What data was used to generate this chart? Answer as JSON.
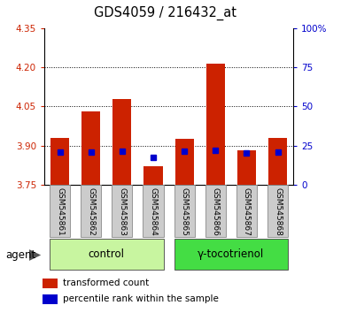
{
  "title": "GDS4059 / 216432_at",
  "samples": [
    "GSM545861",
    "GSM545862",
    "GSM545863",
    "GSM545864",
    "GSM545865",
    "GSM545866",
    "GSM545867",
    "GSM545868"
  ],
  "red_values": [
    3.93,
    4.03,
    4.08,
    3.82,
    3.925,
    4.215,
    3.882,
    3.93
  ],
  "blue_values": [
    3.875,
    3.875,
    3.878,
    3.855,
    3.878,
    3.882,
    3.872,
    3.874
  ],
  "baseline": 3.75,
  "ylim": [
    3.75,
    4.35
  ],
  "ylim_right": [
    0,
    100
  ],
  "yticks_left": [
    3.75,
    3.9,
    4.05,
    4.2,
    4.35
  ],
  "yticks_right": [
    0,
    25,
    50,
    75,
    100
  ],
  "ytick_labels_right": [
    "0",
    "25",
    "50",
    "75",
    "100%"
  ],
  "groups": [
    {
      "label": "control",
      "indices": [
        0,
        1,
        2,
        3
      ],
      "color": "#c8f5a0"
    },
    {
      "label": "γ-tocotrienol",
      "indices": [
        4,
        5,
        6,
        7
      ],
      "color": "#44dd44"
    }
  ],
  "agent_label": "agent",
  "bar_color": "#cc2200",
  "dot_color": "#0000cc",
  "bar_width": 0.6,
  "grid_color": "#000000",
  "plot_bg_color": "#ffffff",
  "sample_bg_color": "#cccccc",
  "legend_items": [
    {
      "color": "#cc2200",
      "label": "transformed count"
    },
    {
      "color": "#0000cc",
      "label": "percentile rank within the sample"
    }
  ]
}
